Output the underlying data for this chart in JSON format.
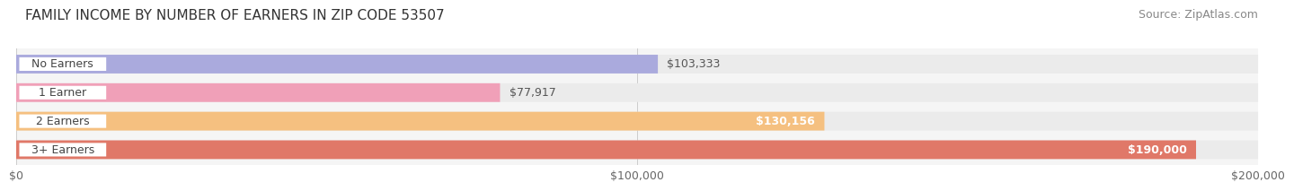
{
  "title": "FAMILY INCOME BY NUMBER OF EARNERS IN ZIP CODE 53507",
  "source": "Source: ZipAtlas.com",
  "categories": [
    "No Earners",
    "1 Earner",
    "2 Earners",
    "3+ Earners"
  ],
  "values": [
    103333,
    77917,
    130156,
    190000
  ],
  "bar_colors": [
    "#aaaadd",
    "#f0a0b8",
    "#f5c080",
    "#e07868"
  ],
  "bar_bg_color": "#ebebeb",
  "value_labels": [
    "$103,333",
    "$77,917",
    "$130,156",
    "$190,000"
  ],
  "value_label_inside": [
    false,
    false,
    true,
    true
  ],
  "xlim": [
    0,
    200000
  ],
  "xtick_values": [
    0,
    100000,
    200000
  ],
  "xtick_labels": [
    "$0",
    "$100,000",
    "$200,000"
  ],
  "title_fontsize": 11,
  "source_fontsize": 9,
  "label_fontsize": 9,
  "value_fontsize": 9,
  "background_color": "#ffffff",
  "plot_bg_color": "#f5f5f5"
}
